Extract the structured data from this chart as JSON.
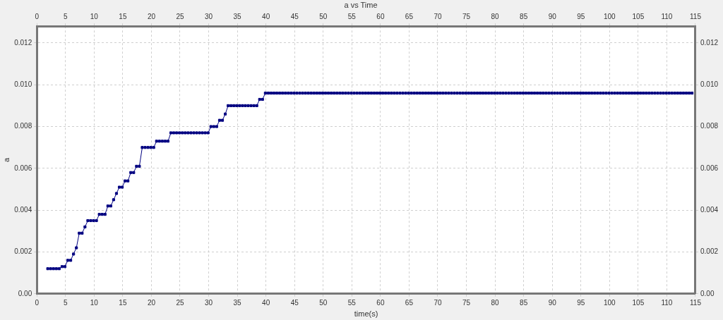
{
  "chart_data": {
    "type": "line",
    "title": "a vs Time",
    "xlabel": "time(s)",
    "ylabel": "a",
    "x": [
      1.9,
      2.4,
      2.9,
      3.4,
      3.9,
      4.4,
      4.9,
      5.4,
      5.9,
      6.4,
      6.9,
      7.4,
      7.9,
      8.4,
      8.9,
      9.4,
      9.9,
      10.4,
      10.9,
      11.4,
      11.9,
      12.4,
      12.9,
      13.4,
      13.9,
      14.4,
      14.9,
      15.4,
      15.9,
      16.4,
      16.9,
      17.4,
      17.9,
      18.4,
      18.9,
      19.4,
      19.9,
      20.4,
      20.9,
      21.4,
      21.9,
      22.4,
      22.9,
      23.4,
      23.9,
      24.4,
      24.9,
      25.4,
      25.9,
      26.4,
      26.9,
      27.4,
      27.9,
      28.4,
      28.9,
      29.4,
      29.9,
      30.4,
      30.9,
      31.4,
      31.9,
      32.4,
      32.9,
      33.4,
      33.9,
      34.4,
      34.9,
      35.4,
      35.9,
      36.4,
      36.9,
      37.4,
      37.9,
      38.4,
      38.9,
      39.4,
      39.9,
      40.4,
      40.9,
      41.4,
      41.9,
      42.4,
      42.9,
      43.4,
      43.9,
      44.4,
      44.9,
      45.4,
      45.9,
      46.4,
      46.9,
      47.4,
      47.9,
      48.4,
      48.9,
      49.4,
      49.9,
      50.4,
      50.9,
      51.4,
      51.9,
      52.4,
      52.9,
      53.4,
      53.9,
      54.4,
      54.9,
      55.4,
      55.9,
      56.4,
      56.9,
      57.4,
      57.9,
      58.4,
      58.9,
      59.4,
      59.9,
      60.4,
      60.9,
      61.4,
      61.9,
      62.4,
      62.9,
      63.4,
      63.9,
      64.4,
      64.9,
      65.4,
      65.9,
      66.4,
      66.9,
      67.4,
      67.9,
      68.4,
      68.9,
      69.4,
      69.9,
      70.4,
      70.9,
      71.4,
      71.9,
      72.4,
      72.9,
      73.4,
      73.9,
      74.4,
      74.9,
      75.4,
      75.9,
      76.4,
      76.9,
      77.4,
      77.9,
      78.4,
      78.9,
      79.4,
      79.9,
      80.4,
      80.9,
      81.4,
      81.9,
      82.4,
      82.9,
      83.4,
      83.9,
      84.4,
      84.9,
      85.4,
      85.9,
      86.4,
      86.9,
      87.4,
      87.9,
      88.4,
      88.9,
      89.4,
      89.9,
      90.4,
      90.9,
      91.4,
      91.9,
      92.4,
      92.9,
      93.4,
      93.9,
      94.4,
      94.9,
      95.4,
      95.9,
      96.4,
      96.9,
      97.4,
      97.9,
      98.4,
      98.9,
      99.4,
      99.9,
      100.4,
      100.9,
      101.4,
      101.9,
      102.4,
      102.9,
      103.4,
      103.9,
      104.4,
      104.9,
      105.4,
      105.9,
      106.4,
      106.9,
      107.4,
      107.9,
      108.4,
      108.9,
      109.4,
      109.9,
      110.4,
      110.9,
      111.4,
      111.9,
      112.4,
      112.9,
      113.4,
      113.9,
      114.4
    ],
    "series": [
      {
        "color": "#000080",
        "values": [
          0.0012,
          0.0012,
          0.0012,
          0.0012,
          0.0012,
          0.0013,
          0.0013,
          0.0016,
          0.0016,
          0.0019,
          0.0022,
          0.0029,
          0.0029,
          0.0032,
          0.0035,
          0.0035,
          0.0035,
          0.0035,
          0.0038,
          0.0038,
          0.0038,
          0.0042,
          0.0042,
          0.0045,
          0.0048,
          0.0051,
          0.0051,
          0.0054,
          0.0054,
          0.0058,
          0.0058,
          0.0061,
          0.0061,
          0.007,
          0.007,
          0.007,
          0.007,
          0.007,
          0.0073,
          0.0073,
          0.0073,
          0.0073,
          0.0073,
          0.0077,
          0.0077,
          0.0077,
          0.0077,
          0.0077,
          0.0077,
          0.0077,
          0.0077,
          0.0077,
          0.0077,
          0.0077,
          0.0077,
          0.0077,
          0.0077,
          0.008,
          0.008,
          0.008,
          0.0083,
          0.0083,
          0.0086,
          0.009,
          0.009,
          0.009,
          0.009,
          0.009,
          0.009,
          0.009,
          0.009,
          0.009,
          0.009,
          0.009,
          0.0093,
          0.0093,
          0.0096,
          0.0096,
          0.0096,
          0.0096,
          0.0096,
          0.0096,
          0.0096,
          0.0096,
          0.0096,
          0.0096,
          0.0096,
          0.0096,
          0.0096,
          0.0096,
          0.0096,
          0.0096,
          0.0096,
          0.0096,
          0.0096,
          0.0096,
          0.0096,
          0.0096,
          0.0096,
          0.0096,
          0.0096,
          0.0096,
          0.0096,
          0.0096,
          0.0096,
          0.0096,
          0.0096,
          0.0096,
          0.0096,
          0.0096,
          0.0096,
          0.0096,
          0.0096,
          0.0096,
          0.0096,
          0.0096,
          0.0096,
          0.0096,
          0.0096,
          0.0096,
          0.0096,
          0.0096,
          0.0096,
          0.0096,
          0.0096,
          0.0096,
          0.0096,
          0.0096,
          0.0096,
          0.0096,
          0.0096,
          0.0096,
          0.0096,
          0.0096,
          0.0096,
          0.0096,
          0.0096,
          0.0096,
          0.0096,
          0.0096,
          0.0096,
          0.0096,
          0.0096,
          0.0096,
          0.0096,
          0.0096,
          0.0096,
          0.0096,
          0.0096,
          0.0096,
          0.0096,
          0.0096,
          0.0096,
          0.0096,
          0.0096,
          0.0096,
          0.0096,
          0.0096,
          0.0096,
          0.0096,
          0.0096,
          0.0096,
          0.0096,
          0.0096,
          0.0096,
          0.0096,
          0.0096,
          0.0096,
          0.0096,
          0.0096,
          0.0096,
          0.0096,
          0.0096,
          0.0096,
          0.0096,
          0.0096,
          0.0096,
          0.0096,
          0.0096,
          0.0096,
          0.0096,
          0.0096,
          0.0096,
          0.0096,
          0.0096,
          0.0096,
          0.0096,
          0.0096,
          0.0096,
          0.0096,
          0.0096,
          0.0096,
          0.0096,
          0.0096,
          0.0096,
          0.0096,
          0.0096,
          0.0096,
          0.0096,
          0.0096,
          0.0096,
          0.0096,
          0.0096,
          0.0096,
          0.0096,
          0.0096,
          0.0096,
          0.0096,
          0.0096,
          0.0096,
          0.0096,
          0.0096,
          0.0096,
          0.0096,
          0.0096,
          0.0096,
          0.0096,
          0.0096,
          0.0096,
          0.0096,
          0.0096,
          0.0096,
          0.0096,
          0.0096,
          0.0096,
          0.0096
        ]
      }
    ],
    "xlim": [
      0,
      115
    ],
    "xticks": [
      0,
      5,
      10,
      15,
      20,
      25,
      30,
      35,
      40,
      45,
      50,
      55,
      60,
      65,
      70,
      75,
      80,
      85,
      90,
      95,
      100,
      105,
      110,
      115
    ],
    "x2lim": [
      0,
      115
    ],
    "x2ticks": [
      0,
      5,
      10,
      15,
      20,
      25,
      30,
      35,
      40,
      45,
      50,
      55,
      60,
      65,
      70,
      75,
      80,
      85,
      90,
      95,
      100,
      105,
      110,
      115
    ],
    "ylim": [
      0,
      0.0128
    ],
    "yticks": [
      {
        "value": 0,
        "label": "0.00"
      },
      {
        "value": 0.002,
        "label": "0.002"
      },
      {
        "value": 0.004,
        "label": "0.004"
      },
      {
        "value": 0.006,
        "label": "0.006"
      },
      {
        "value": 0.008,
        "label": "0.008"
      },
      {
        "value": 0.01,
        "label": "0.010"
      },
      {
        "value": 0.012,
        "label": "0.012"
      }
    ],
    "y2lim": [
      0,
      0.0128
    ],
    "y2ticks": [
      {
        "value": 0,
        "label": "0.00"
      },
      {
        "value": 0.002,
        "label": "0.002"
      },
      {
        "value": 0.004,
        "label": "0.004"
      },
      {
        "value": 0.006,
        "label": "0.006"
      },
      {
        "value": 0.008,
        "label": "0.008"
      },
      {
        "value": 0.01,
        "label": "0.010"
      },
      {
        "value": 0.012,
        "label": "0.012"
      }
    ],
    "grid": true,
    "marker": "square"
  }
}
